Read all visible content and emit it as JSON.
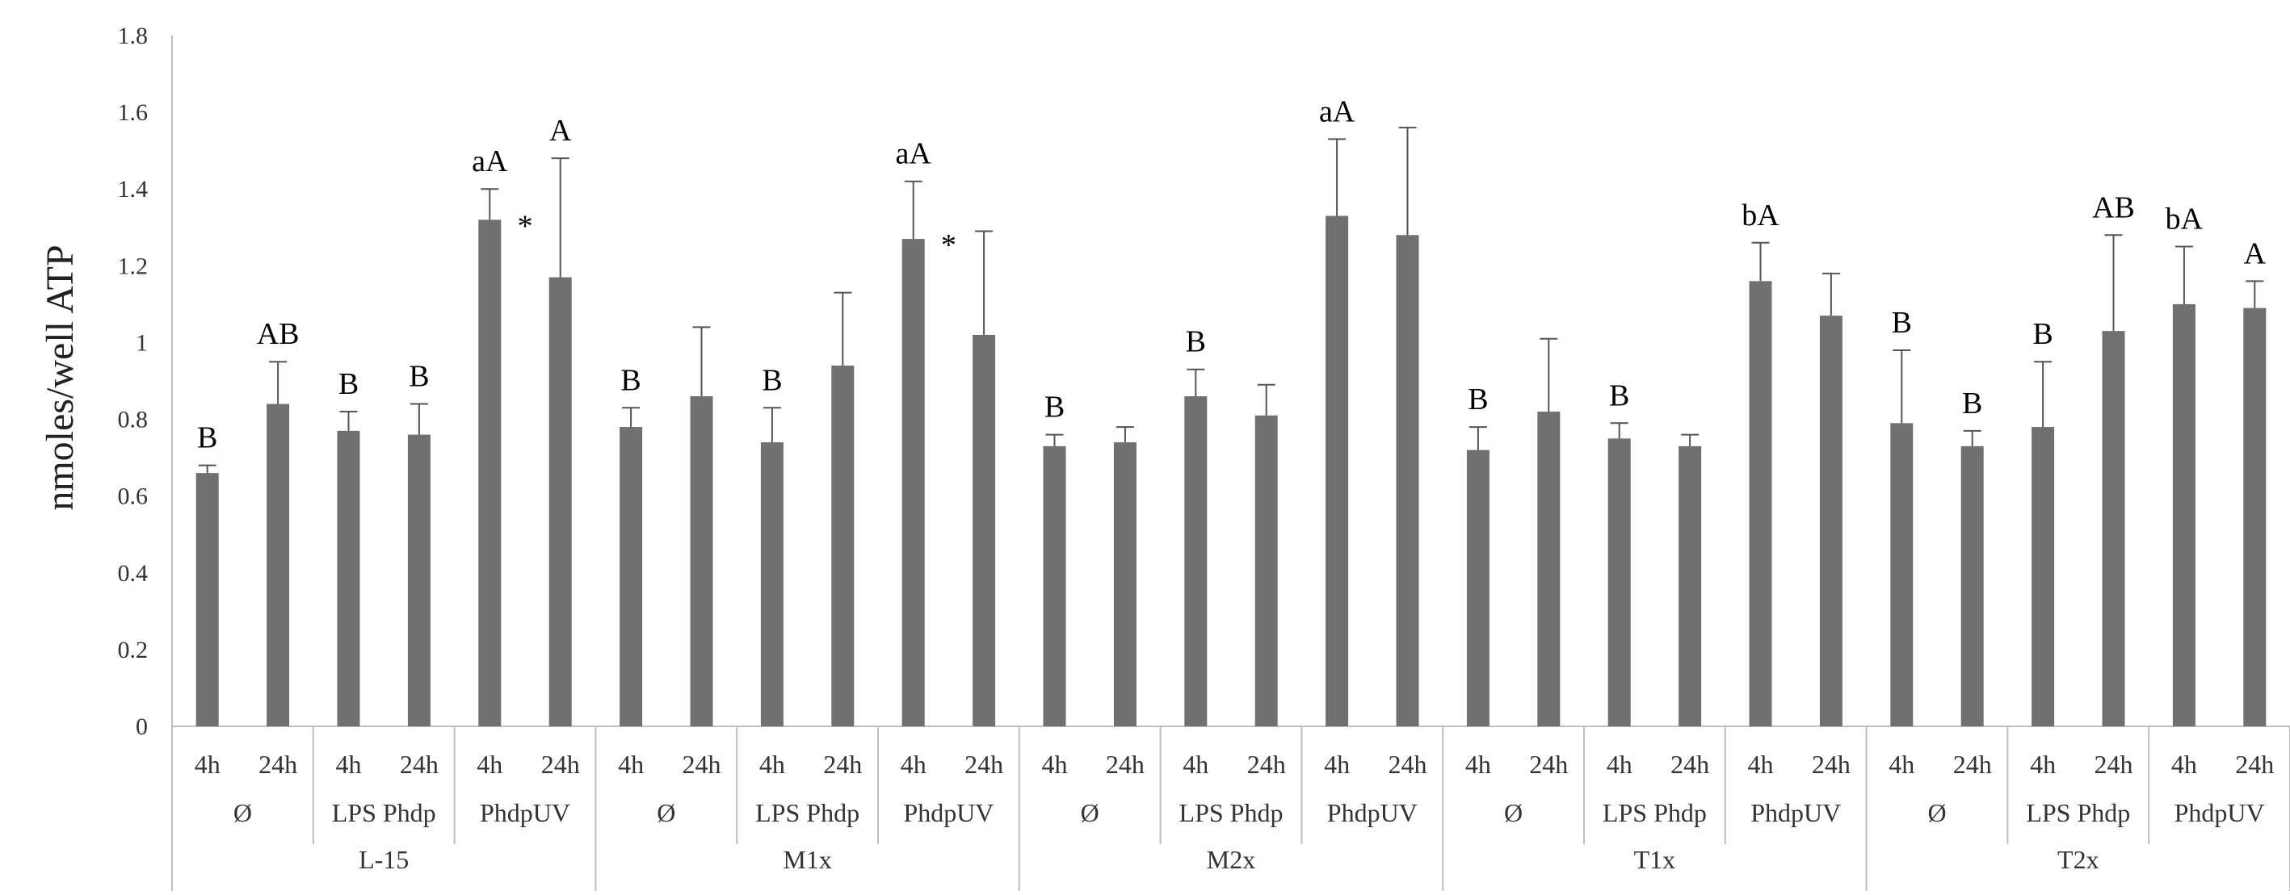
{
  "chart_data": {
    "type": "bar",
    "title": "",
    "ylabel": "nmoles/well ATP",
    "xlabel": "",
    "ylim": [
      0,
      1.8
    ],
    "yticks": [
      0,
      0.2,
      0.4,
      0.6,
      0.8,
      1,
      1.2,
      1.4,
      1.6,
      1.8
    ],
    "ytick_labels": [
      "0",
      "0.2",
      "0.4",
      "0.6",
      "0.8",
      "1",
      "1.2",
      "1.4",
      "1.6",
      "1.8"
    ],
    "grid": false,
    "legend": "none",
    "bar_color": "#707070",
    "error_color": "#555555",
    "axis_color": "#bfbfbf",
    "categories": [
      "L-15 | Ø | 4h",
      "L-15 | Ø | 24h",
      "L-15 | LPS Phdp | 4h",
      "L-15 | LPS Phdp | 24h",
      "L-15 | PhdpUV | 4h",
      "L-15 | PhdpUV | 24h",
      "M1x | Ø | 4h",
      "M1x | Ø | 24h",
      "M1x | LPS Phdp | 4h",
      "M1x | LPS Phdp | 24h",
      "M1x | PhdpUV | 4h",
      "M1x | PhdpUV | 24h",
      "M2x | Ø | 4h",
      "M2x | Ø | 24h",
      "M2x | LPS Phdp | 4h",
      "M2x | LPS Phdp | 24h",
      "M2x | PhdpUV | 4h",
      "M2x | PhdpUV | 24h",
      "T1x | Ø | 4h",
      "T1x | Ø | 24h",
      "T1x | LPS Phdp | 4h",
      "T1x | LPS Phdp | 24h",
      "T1x | PhdpUV | 4h",
      "T1x | PhdpUV | 24h",
      "T2x | Ø | 4h",
      "T2x | Ø | 24h",
      "T2x | LPS Phdp | 4h",
      "T2x | LPS Phdp | 24h",
      "T2x | PhdpUV | 4h",
      "T2x | PhdpUV | 24h"
    ],
    "groups": [
      "L-15",
      "M1x",
      "M2x",
      "T1x",
      "T2x"
    ],
    "treatments": [
      "Ø",
      "LPS Phdp",
      "PhdpUV"
    ],
    "times": [
      "4h",
      "24h"
    ],
    "values": [
      0.66,
      0.84,
      0.77,
      0.76,
      1.32,
      1.17,
      0.78,
      0.86,
      0.74,
      0.94,
      1.27,
      1.02,
      0.73,
      0.74,
      0.86,
      0.81,
      1.33,
      1.28,
      0.72,
      0.82,
      0.75,
      0.73,
      1.16,
      1.07,
      0.79,
      0.73,
      0.78,
      1.03,
      1.1,
      1.09
    ],
    "error_upper": [
      0.68,
      0.95,
      0.82,
      0.84,
      1.4,
      1.48,
      0.83,
      1.04,
      0.83,
      1.13,
      1.42,
      1.29,
      0.76,
      0.78,
      0.93,
      0.89,
      1.53,
      1.56,
      0.78,
      1.01,
      0.79,
      0.76,
      1.26,
      1.18,
      0.98,
      0.77,
      0.95,
      1.28,
      1.25,
      1.16
    ],
    "annotations": [
      "B",
      "AB",
      "B",
      "B",
      "aA",
      "A",
      "B",
      "",
      "B",
      "",
      "aA",
      "",
      "B",
      "",
      "B",
      "",
      "aA",
      "",
      "B",
      "",
      "B",
      "",
      "bA",
      "",
      "B",
      "B",
      "B",
      "AB",
      "bA",
      "A"
    ],
    "stars": [
      "",
      "",
      "",
      "",
      "*",
      "",
      "",
      "",
      "",
      "",
      "*",
      "",
      "",
      "",
      "",
      "",
      "",
      "",
      "",
      "",
      "",
      "",
      "",
      "",
      "",
      "",
      "",
      "",
      "",
      ""
    ]
  }
}
